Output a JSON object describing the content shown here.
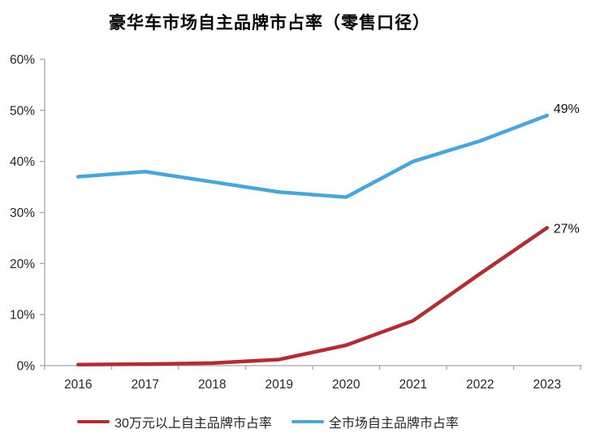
{
  "chart_data": {
    "type": "line",
    "title": "豪华车市场自主品牌市占率（零售口径）",
    "x_categories": [
      "2016",
      "2017",
      "2018",
      "2019",
      "2020",
      "2021",
      "2022",
      "2023"
    ],
    "series": [
      {
        "name": "30万元以上自主品牌市占率",
        "color": "#B02E31",
        "values": [
          0.2,
          0.3,
          0.5,
          1.2,
          4,
          8.8,
          18,
          27
        ],
        "end_label": "27%"
      },
      {
        "name": "全市场自主品牌市占率",
        "color": "#4AA5D8",
        "values": [
          37,
          38,
          36,
          34,
          33,
          40,
          44,
          49
        ],
        "end_label": "49%"
      }
    ],
    "ylim": [
      0,
      60
    ],
    "ytick_step": 10,
    "ytick_labels": [
      "0%",
      "10%",
      "20%",
      "30%",
      "40%",
      "50%",
      "60%"
    ],
    "grid": false,
    "legend_position": "bottom",
    "axis_color": "#A6A6A6",
    "text_color": "#262626"
  }
}
